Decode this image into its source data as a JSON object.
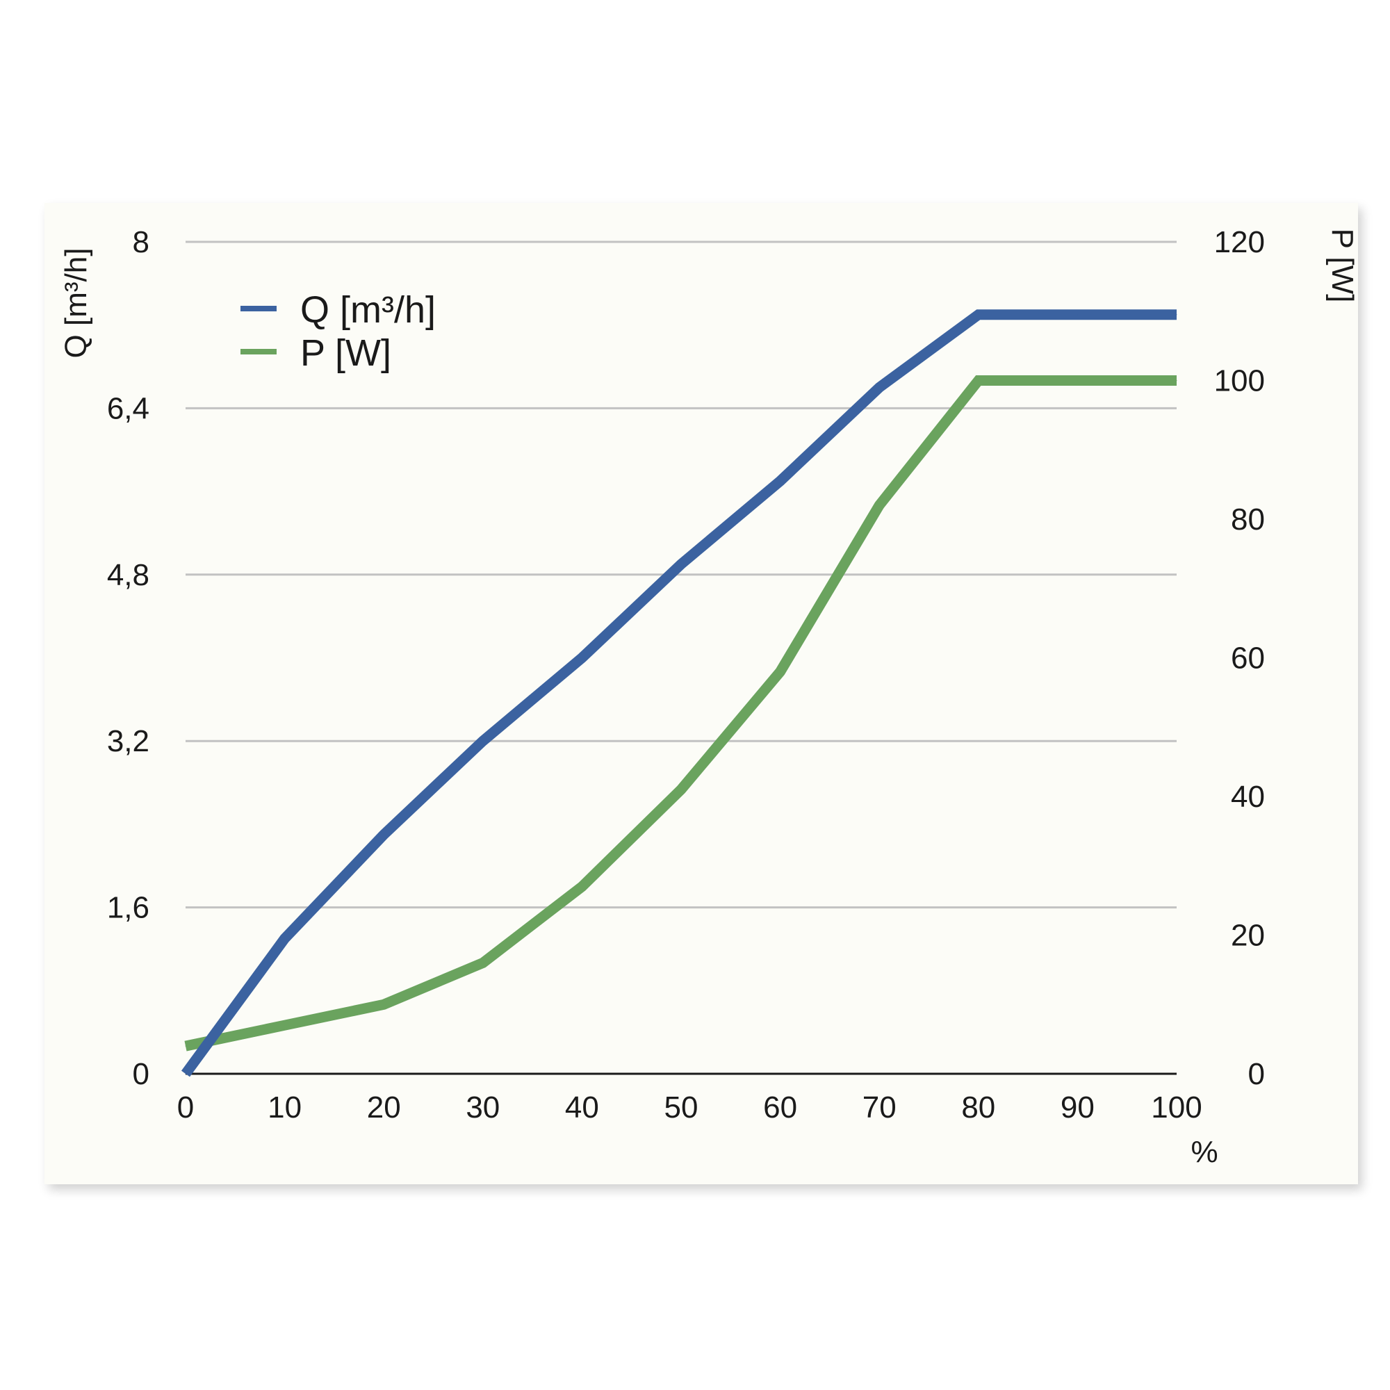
{
  "colors": {
    "q_series": "#3b62a0",
    "p_series": "#6aa35e",
    "grid": "#c2c2c2",
    "axis": "#1a1a1a",
    "card": "#fcfcf7"
  },
  "chart_data": {
    "type": "line",
    "x": [
      0,
      10,
      20,
      30,
      40,
      50,
      60,
      70,
      80,
      90,
      100
    ],
    "xlim": [
      0,
      100
    ],
    "xticks": [
      "0",
      "10",
      "20",
      "30",
      "40",
      "50",
      "60",
      "70",
      "80",
      "90",
      "100"
    ],
    "xunit": "%",
    "ylabel_left": "Q [m³/h]",
    "ylim_left": [
      0,
      8
    ],
    "yticks_left": [
      "0",
      "1,6",
      "3,2",
      "4,8",
      "6,4",
      "8"
    ],
    "ylabel_right": "P [W]",
    "ylim_right": [
      0,
      120
    ],
    "yticks_right": [
      "0",
      "20",
      "40",
      "60",
      "80",
      "100",
      "120"
    ],
    "grid": true,
    "legend_position": "top-left",
    "series": [
      {
        "name": "Q [m³/h]",
        "axis": "left",
        "values": [
          0,
          1.3,
          2.3,
          3.2,
          4.0,
          4.9,
          5.7,
          6.6,
          7.3,
          7.3,
          7.3
        ]
      },
      {
        "name": "P [W]",
        "axis": "right",
        "values": [
          4,
          7,
          10,
          16,
          27,
          41,
          58,
          82,
          100,
          100,
          100
        ]
      }
    ]
  }
}
